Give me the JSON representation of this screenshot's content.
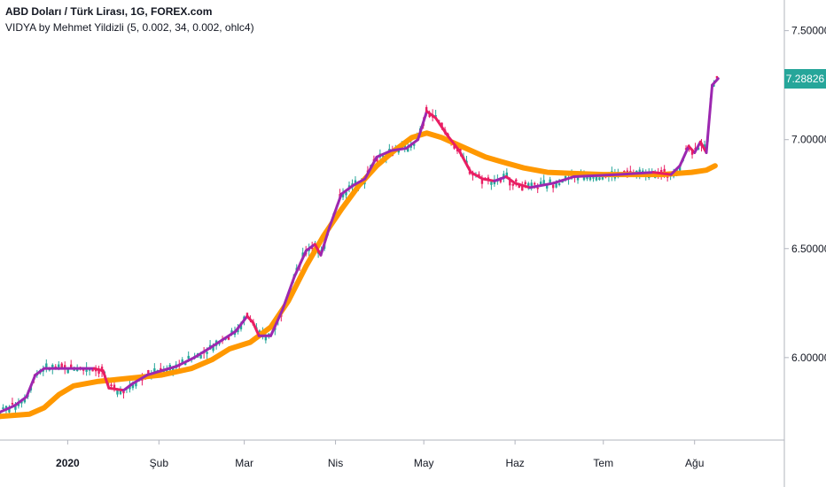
{
  "header": {
    "symbol_title": "ABD Doları / Türk Lirası, 1G, FOREX.com",
    "indicator_title": "VIDYA by Mehmet Yildizli (5, 0.002, 34, 0.002, ohlc4)"
  },
  "current_price": "7.28826",
  "chart_data": {
    "type": "line",
    "ylim": [
      5.65,
      7.6
    ],
    "y_ticks": [
      6.0,
      6.5,
      7.0,
      7.5
    ],
    "y_tick_labels": [
      "6.00000",
      "6.50000",
      "7.00000",
      "7.50000"
    ],
    "x_tick_labels": [
      {
        "label": "2020",
        "day": 23,
        "bold": true
      },
      {
        "label": "Şub",
        "day": 54,
        "bold": false
      },
      {
        "label": "Mar",
        "day": 83,
        "bold": false
      },
      {
        "label": "Nis",
        "day": 114,
        "bold": false
      },
      {
        "label": "May",
        "day": 144,
        "bold": false
      },
      {
        "label": "Haz",
        "day": 175,
        "bold": false
      },
      {
        "label": "Tem",
        "day": 205,
        "bold": false
      },
      {
        "label": "Ağu",
        "day": 236,
        "bold": false
      }
    ],
    "xlim": [
      0,
      265
    ],
    "series": [
      {
        "name": "",
        "color": "#ff9800",
        "style": "thick",
        "points": [
          [
            0,
            5.73
          ],
          [
            10,
            5.74
          ],
          [
            15,
            5.77
          ],
          [
            20,
            5.83
          ],
          [
            25,
            5.87
          ],
          [
            33,
            5.89
          ],
          [
            40,
            5.9
          ],
          [
            55,
            5.92
          ],
          [
            65,
            5.95
          ],
          [
            72,
            5.99
          ],
          [
            78,
            6.04
          ],
          [
            85,
            6.07
          ],
          [
            92,
            6.14
          ],
          [
            98,
            6.26
          ],
          [
            104,
            6.42
          ],
          [
            110,
            6.56
          ],
          [
            116,
            6.68
          ],
          [
            122,
            6.79
          ],
          [
            128,
            6.88
          ],
          [
            134,
            6.95
          ],
          [
            140,
            7.01
          ],
          [
            145,
            7.03
          ],
          [
            150,
            7.01
          ],
          [
            155,
            6.98
          ],
          [
            160,
            6.95
          ],
          [
            165,
            6.92
          ],
          [
            170,
            6.9
          ],
          [
            178,
            6.87
          ],
          [
            186,
            6.85
          ],
          [
            194,
            6.845
          ],
          [
            205,
            6.84
          ],
          [
            215,
            6.84
          ],
          [
            225,
            6.84
          ],
          [
            235,
            6.85
          ],
          [
            240,
            6.86
          ],
          [
            243,
            6.88
          ]
        ]
      },
      {
        "name": "",
        "color": "#9c27b0",
        "color_down": "#e91e63",
        "style": "normal",
        "points": [
          [
            0,
            5.75
          ],
          [
            5,
            5.78
          ],
          [
            9,
            5.82
          ],
          [
            12,
            5.92
          ],
          [
            15,
            5.95
          ],
          [
            20,
            5.95
          ],
          [
            28,
            5.95
          ],
          [
            32,
            5.95
          ],
          [
            35,
            5.94
          ],
          [
            37,
            5.86
          ],
          [
            42,
            5.85
          ],
          [
            45,
            5.88
          ],
          [
            50,
            5.92
          ],
          [
            55,
            5.94
          ],
          [
            60,
            5.96
          ],
          [
            66,
            6.0
          ],
          [
            72,
            6.05
          ],
          [
            80,
            6.12
          ],
          [
            84,
            6.19
          ],
          [
            86,
            6.16
          ],
          [
            88,
            6.1
          ],
          [
            92,
            6.1
          ],
          [
            96,
            6.22
          ],
          [
            100,
            6.37
          ],
          [
            104,
            6.49
          ],
          [
            107,
            6.52
          ],
          [
            109,
            6.47
          ],
          [
            112,
            6.6
          ],
          [
            116,
            6.75
          ],
          [
            120,
            6.79
          ],
          [
            124,
            6.82
          ],
          [
            128,
            6.92
          ],
          [
            133,
            6.95
          ],
          [
            138,
            6.96
          ],
          [
            142,
            7.0
          ],
          [
            145,
            7.13
          ],
          [
            148,
            7.1
          ],
          [
            152,
            7.02
          ],
          [
            156,
            6.95
          ],
          [
            160,
            6.85
          ],
          [
            164,
            6.82
          ],
          [
            168,
            6.81
          ],
          [
            172,
            6.83
          ],
          [
            175,
            6.8
          ],
          [
            180,
            6.78
          ],
          [
            188,
            6.8
          ],
          [
            195,
            6.83
          ],
          [
            210,
            6.84
          ],
          [
            222,
            6.85
          ],
          [
            228,
            6.84
          ],
          [
            231,
            6.88
          ],
          [
            234,
            6.97
          ],
          [
            236,
            6.94
          ],
          [
            238,
            6.99
          ],
          [
            240,
            6.94
          ],
          [
            242,
            7.25
          ],
          [
            244,
            7.28
          ]
        ]
      }
    ],
    "candle_color_up": "#26a69a",
    "candle_color_down": "#e91e63"
  }
}
